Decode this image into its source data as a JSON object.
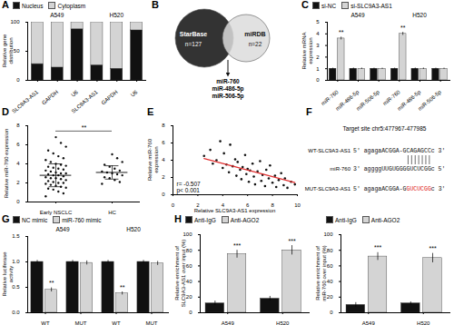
{
  "chart_data": [
    {
      "panel": "A",
      "type": "bar",
      "stacked": true,
      "categories": [
        "SLC9A3-AS1",
        "GAPDH",
        "U6",
        "SLC9A3-AS1",
        "GAPDH",
        "U6"
      ],
      "groups": [
        "A549",
        "H520"
      ],
      "y_label": "Relative gene distribution",
      "ylim": [
        0,
        100
      ],
      "yticks": [
        0,
        50,
        100
      ],
      "legend": "top",
      "series": [
        {
          "name": "Nucleus",
          "color": "#111111",
          "values": [
            28,
            22,
            88,
            26,
            20,
            86
          ]
        },
        {
          "name": "Cytoplasm",
          "color": "#d4d4d4",
          "values": [
            72,
            78,
            12,
            74,
            80,
            14
          ]
        }
      ]
    },
    {
      "panel": "B",
      "type": "venn",
      "sets": [
        {
          "name": "StarBase",
          "label": "n=127",
          "color": "#333333"
        },
        {
          "name": "miRDB",
          "label": "n=22",
          "color": "#dcdcdc"
        }
      ],
      "intersection": [
        "miR-760",
        "miR-486-5p",
        "miR-506-5p"
      ]
    },
    {
      "panel": "C",
      "type": "bar",
      "categories": [
        "miR-760",
        "miR-486-5p",
        "miR-506-5p",
        "miR-760",
        "miR-486-5p",
        "miR-506-5p"
      ],
      "groups": [
        "A549",
        "H520"
      ],
      "y_label": "Relative mRNA expression",
      "ylim": [
        0,
        5
      ],
      "yticks": [
        0,
        1,
        2,
        3,
        4,
        5
      ],
      "legend": "top",
      "series": [
        {
          "name": "si-NC",
          "color": "#111111",
          "values": [
            1,
            1,
            1,
            1,
            1,
            1
          ],
          "errors": [
            0.05,
            0.06,
            0.05,
            0.05,
            0.06,
            0.05
          ]
        },
        {
          "name": "si-SLC9A3-AS1",
          "color": "#d4d4d4",
          "values": [
            3.6,
            1,
            1,
            4.0,
            1,
            1
          ],
          "errors": [
            0.12,
            0.06,
            0.05,
            0.13,
            0.06,
            0.05
          ],
          "significance": [
            "**",
            null,
            null,
            "**",
            null,
            null
          ]
        }
      ]
    },
    {
      "panel": "D",
      "type": "strip",
      "categories": [
        "Early NSCLC",
        "HC"
      ],
      "y_label": "Relative miR-760 expression",
      "ylim": [
        0,
        8
      ],
      "yticks": [
        0,
        2,
        4,
        6,
        8
      ],
      "color": "#111111",
      "values": [
        [
          0.6,
          0.9,
          1.1,
          1.3,
          1.4,
          1.5,
          1.6,
          1.7,
          1.8,
          1.9,
          2.0,
          2.0,
          2.1,
          2.2,
          2.3,
          2.4,
          2.5,
          2.5,
          2.6,
          2.7,
          2.8,
          2.8,
          2.9,
          3.0,
          3.0,
          3.1,
          3.2,
          3.3,
          3.4,
          3.5,
          3.6,
          3.7,
          3.8,
          3.9,
          4.0,
          4.2,
          4.4,
          4.6,
          4.8,
          5.1,
          5.4,
          5.8,
          6.2,
          6.8
        ],
        [
          1.9,
          2.1,
          2.3,
          2.5,
          2.6,
          2.8,
          2.9,
          3.0,
          3.1,
          3.2,
          3.3,
          3.5,
          3.7,
          3.9,
          4.2,
          4.6,
          5.0
        ]
      ],
      "mean": [
        2.8,
        3.1
      ],
      "errors": [
        1.2,
        0.7
      ],
      "significance": "**"
    },
    {
      "panel": "E",
      "type": "scatter",
      "x_label": "Relative SLC9A3-AS1 expression",
      "y_label": "Relative miR-760 expression",
      "xlim": [
        0,
        10
      ],
      "xticks": [
        0,
        2,
        4,
        6,
        8,
        10
      ],
      "ylim": [
        0,
        8
      ],
      "yticks": [
        0,
        2,
        4,
        6,
        8
      ],
      "color": "#111111",
      "x": [
        2.5,
        3.0,
        3.2,
        3.5,
        3.8,
        4.0,
        4.1,
        4.3,
        4.5,
        4.6,
        4.8,
        5.0,
        5.1,
        5.2,
        5.4,
        5.5,
        5.6,
        5.8,
        5.9,
        6.0,
        6.1,
        6.2,
        6.4,
        6.5,
        6.6,
        6.8,
        7.0,
        7.1,
        7.2,
        7.4,
        7.5,
        7.7,
        7.8,
        8.0,
        8.2,
        8.3,
        8.5,
        8.7,
        8.9,
        9.0,
        9.2,
        9.5,
        9.8
      ],
      "values": [
        4.5,
        5.2,
        3.6,
        4.0,
        6.2,
        3.1,
        4.8,
        3.5,
        2.6,
        5.8,
        3.3,
        4.1,
        2.2,
        3.8,
        2.9,
        1.8,
        3.2,
        4.6,
        2.4,
        3.0,
        1.5,
        2.8,
        3.6,
        2.1,
        1.2,
        2.7,
        3.9,
        1.6,
        2.3,
        1.0,
        2.9,
        1.9,
        3.4,
        1.4,
        2.2,
        0.9,
        1.7,
        2.5,
        1.1,
        1.9,
        0.8,
        1.5,
        1.2
      ],
      "fit_line": {
        "x": [
          2.5,
          9.8
        ],
        "values": [
          4.2,
          1.4
        ],
        "color": "#e03030"
      },
      "annotations": [
        "r= -0.507",
        "p< 0.001"
      ]
    },
    {
      "panel": "F",
      "type": "sequence",
      "title": "Target site chr5:477967-477985",
      "rows": [
        {
          "label": "WT-SLC9A3-AS1",
          "segments": [
            {
              "text": "5' agagaACGGA-GCAGAGCCc 3'"
            }
          ]
        },
        {
          "label": "miR-760",
          "segments": [
            {
              "text": "3' aggggUUGUGGGGUCUCGGc 5'"
            }
          ]
        },
        {
          "label": "MUT-SLC9A3-AS1",
          "segments": [
            {
              "text": "5' agagaACGGA-G"
            },
            {
              "text": "GUCUCGG",
              "color": "#e02020"
            },
            {
              "text": "c 3'"
            }
          ]
        }
      ],
      "pair_positions": [
        15,
        16,
        17,
        18,
        19,
        20,
        21
      ]
    },
    {
      "panel": "G",
      "type": "bar",
      "categories": [
        "WT",
        "MUT",
        "WT",
        "MUT"
      ],
      "groups": [
        "A549",
        "H520"
      ],
      "y_label": "Relative luciferase activity",
      "ylim": [
        0,
        1.5
      ],
      "yticks": [
        {
          "value": 0,
          "label": "0.0"
        },
        {
          "value": 0.5,
          "label": "0.5"
        },
        {
          "value": 1,
          "label": "1.0"
        },
        {
          "value": 1.5,
          "label": "1.5"
        }
      ],
      "legend": "top",
      "series": [
        {
          "name": "NC mimic",
          "color": "#111111",
          "values": [
            1,
            1,
            1,
            1
          ],
          "errors": [
            0.03,
            0.03,
            0.03,
            0.03
          ]
        },
        {
          "name": "miR-760 mimic",
          "color": "#d4d4d4",
          "values": [
            0.45,
            0.98,
            0.38,
            0.97
          ],
          "errors": [
            0.04,
            0.04,
            0.03,
            0.04
          ],
          "significance": [
            "**",
            null,
            "**",
            null
          ]
        }
      ]
    },
    {
      "panel": "H",
      "type": "bar",
      "categories": [
        "A549",
        "H520"
      ],
      "y_label": "Relative enrichment of SLC9A3-AS1 over input (%)",
      "ylim": [
        0,
        100
      ],
      "yticks": [
        0,
        20,
        40,
        60,
        80,
        100
      ],
      "legend": "top",
      "series": [
        {
          "name": "Anti-IgG",
          "color": "#111111",
          "values": [
            12,
            18
          ],
          "errors": [
            3,
            3
          ]
        },
        {
          "name": "Anti-AGO2",
          "color": "#d4d4d4",
          "values": [
            75,
            80
          ],
          "errors": [
            5,
            6
          ],
          "significance": [
            "***",
            "***"
          ]
        }
      ]
    },
    {
      "type": "bar",
      "categories": [
        "A549",
        "H520"
      ],
      "y_label": "Relative enrichment of miR-760 over input (%)",
      "ylim": [
        0,
        100
      ],
      "yticks": [
        0,
        20,
        40,
        60,
        80,
        100
      ],
      "legend": "top",
      "series": [
        {
          "name": "Anti-IgG",
          "color": "#111111",
          "values": [
            10,
            12
          ],
          "errors": [
            3,
            2
          ]
        },
        {
          "name": "Anti-AGO2",
          "color": "#d4d4d4",
          "values": [
            72,
            70
          ],
          "errors": [
            5,
            6
          ],
          "significance": [
            "***",
            "***"
          ]
        }
      ]
    }
  ]
}
